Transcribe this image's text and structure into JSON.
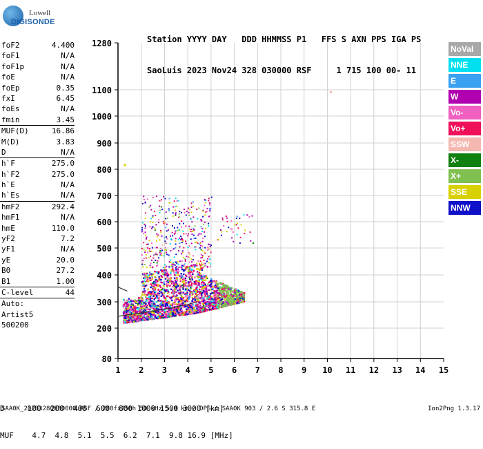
{
  "logo": {
    "line1": "Lowell",
    "line2": "DIGISONDE"
  },
  "header": {
    "row1": "Station YYYY DAY   DDD HHMMSS P1   FFS S AXN PPS IGA PS",
    "row2": "SaoLuis 2023 Nov24 328 030000 RSF     1 715 100 00- 11"
  },
  "params": {
    "group1": [
      {
        "label": "foF2",
        "value": "4.400"
      },
      {
        "label": "foF1",
        "value": "N/A"
      },
      {
        "label": "foF1p",
        "value": "N/A"
      },
      {
        "label": "foE",
        "value": "N/A"
      },
      {
        "label": "foEp",
        "value": "0.35"
      },
      {
        "label": "fxI",
        "value": "6.45"
      },
      {
        "label": "foEs",
        "value": "N/A"
      },
      {
        "label": "fmin",
        "value": "3.45"
      }
    ],
    "group2": [
      {
        "label": "MUF(D)",
        "value": "16.86"
      },
      {
        "label": "M(D)",
        "value": "3.83"
      },
      {
        "label": "D",
        "value": "N/A"
      }
    ],
    "group3": [
      {
        "label": "h`F",
        "value": "275.0"
      },
      {
        "label": "h`F2",
        "value": "275.0"
      },
      {
        "label": "h`E",
        "value": "N/A"
      },
      {
        "label": "h`Es",
        "value": "N/A"
      }
    ],
    "group4": [
      {
        "label": "hmF2",
        "value": "292.4"
      },
      {
        "label": "hmF1",
        "value": "N/A"
      },
      {
        "label": "hmE",
        "value": "110.0"
      },
      {
        "label": "yF2",
        "value": "7.2"
      },
      {
        "label": "yF1",
        "value": "N/A"
      },
      {
        "label": "yE",
        "value": "20.0"
      },
      {
        "label": "B0",
        "value": "27.2"
      },
      {
        "label": "B1",
        "value": "1.00"
      }
    ],
    "clevel": {
      "label": "C-level",
      "value": "44"
    },
    "auto": [
      "Auto:",
      "Artist5",
      "500200"
    ]
  },
  "legend": [
    {
      "label": "NoVal",
      "color": "#a8a8a8"
    },
    {
      "label": "NNE",
      "color": "#00e0f0"
    },
    {
      "label": "E",
      "color": "#3aa0f0"
    },
    {
      "label": "W",
      "color": "#b000b0"
    },
    {
      "label": "Vo-",
      "color": "#f060c0"
    },
    {
      "label": "Vo+",
      "color": "#f0105a"
    },
    {
      "label": "SSW",
      "color": "#f4b8b0"
    },
    {
      "label": "X-",
      "color": "#108010"
    },
    {
      "label": "X+",
      "color": "#80c050"
    },
    {
      "label": "SSE",
      "color": "#d8d000"
    },
    {
      "label": "NNW",
      "color": "#1010c8"
    }
  ],
  "chart_data": {
    "type": "scatter",
    "title": "",
    "xlabel": "",
    "ylabel": "",
    "x_ticks": [
      "1",
      "2",
      "3",
      "4",
      "5",
      "6",
      "7",
      "8",
      "9",
      "10",
      "11",
      "12",
      "13",
      "14",
      "15"
    ],
    "y_ticks": [
      "80",
      "200",
      "300",
      "400",
      "500",
      "600",
      "700",
      "800",
      "900",
      "1000",
      "1100",
      "1280"
    ],
    "xlim": [
      1,
      15
    ],
    "y_scale": "nonlinear (virtual height, km)",
    "grid": true,
    "point_clusters": [
      {
        "desc": "dense F-layer trace",
        "x_range": [
          1.2,
          6.4
        ],
        "y_range": [
          215,
          430
        ]
      },
      {
        "desc": "scatter cloud",
        "x_range": [
          2.0,
          5.0
        ],
        "y_range": [
          430,
          700
        ]
      },
      {
        "desc": "isolated point",
        "x": 1.25,
        "y": 820
      },
      {
        "desc": "isolated point",
        "x": 10.1,
        "y": 1095
      }
    ],
    "traces": [
      {
        "name": "o-trace fit",
        "points": [
          [
            1.0,
            245
          ],
          [
            2.0,
            258
          ],
          [
            3.0,
            272
          ],
          [
            4.0,
            290
          ],
          [
            4.4,
            300
          ]
        ]
      },
      {
        "name": "short fit",
        "points": [
          [
            1.0,
            355
          ],
          [
            1.4,
            340
          ]
        ]
      }
    ]
  },
  "footer": {
    "d_row": "D     100  200  400  600  800 1000 1500 3000 [km]",
    "muf_row": "MUF    4.7  4.8  5.1  5.5  6.2  7.1  9.8 16.9 [MHz]"
  },
  "bottom": {
    "left": "SAA0K_20233280030000.RSF / 280fx256h 50 kHz 5.0 km / DPS-4 SAA0K 903 / 2.6 S 315.8 E",
    "right": "Ion2Png 1.3.17"
  }
}
